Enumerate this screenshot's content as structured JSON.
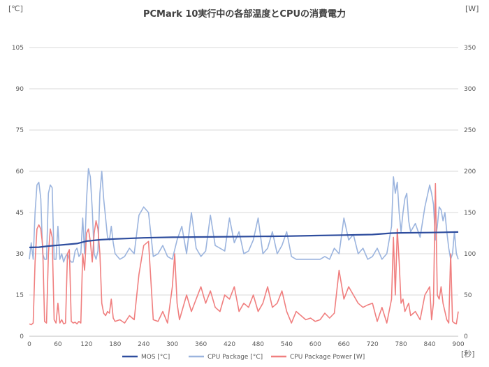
{
  "chart_data": {
    "type": "line",
    "title": "PCMark 10実行中の各部温度とCPUの消費電力",
    "left_unit": "[℃]",
    "right_unit": "[W]",
    "x_unit": "[秒]",
    "xlim": [
      0,
      900
    ],
    "ylim_left": [
      0,
      105
    ],
    "ylim_right": [
      0,
      350
    ],
    "x_ticks": [
      "0",
      "60",
      "120",
      "180",
      "240",
      "300",
      "360",
      "420",
      "480",
      "540",
      "600",
      "660",
      "720",
      "780",
      "840",
      "900"
    ],
    "y_left_ticks": [
      "0",
      "15",
      "30",
      "45",
      "60",
      "75",
      "90",
      "105"
    ],
    "y_right_ticks": [
      "0",
      "50",
      "100",
      "150",
      "200",
      "250",
      "300",
      "350"
    ],
    "grid": "horizontal",
    "legend_position": "bottom",
    "series": [
      {
        "name": "MOS [°C]",
        "axis": "left",
        "color": "#2e4d9e",
        "x": [
          0,
          20,
          40,
          60,
          80,
          100,
          120,
          150,
          180,
          240,
          300,
          360,
          420,
          480,
          540,
          600,
          660,
          720,
          760,
          780,
          840,
          900
        ],
        "y": [
          32.3,
          32.4,
          32.8,
          33.1,
          33.4,
          33.7,
          34.6,
          35.1,
          35.4,
          35.8,
          36.0,
          36.1,
          36.2,
          36.3,
          36.4,
          36.6,
          36.8,
          37.0,
          37.5,
          37.6,
          37.7,
          37.9
        ]
      },
      {
        "name": "CPU Package [°C]",
        "axis": "left",
        "color": "#9bb4de",
        "x": [
          0,
          4,
          8,
          12,
          16,
          20,
          24,
          28,
          32,
          36,
          40,
          44,
          48,
          52,
          56,
          60,
          64,
          68,
          72,
          76,
          80,
          84,
          88,
          92,
          96,
          100,
          104,
          108,
          112,
          116,
          120,
          124,
          128,
          132,
          136,
          140,
          144,
          148,
          152,
          156,
          160,
          164,
          168,
          172,
          176,
          180,
          190,
          200,
          210,
          220,
          230,
          240,
          250,
          260,
          270,
          280,
          290,
          300,
          310,
          320,
          330,
          340,
          350,
          360,
          370,
          380,
          390,
          400,
          410,
          420,
          430,
          440,
          450,
          460,
          470,
          480,
          490,
          500,
          510,
          520,
          530,
          540,
          550,
          560,
          570,
          580,
          590,
          600,
          610,
          620,
          630,
          640,
          650,
          660,
          670,
          680,
          690,
          700,
          710,
          720,
          730,
          740,
          750,
          760,
          764,
          768,
          772,
          776,
          780,
          784,
          788,
          792,
          796,
          800,
          810,
          820,
          830,
          840,
          844,
          848,
          852,
          856,
          860,
          864,
          868,
          872,
          876,
          880,
          884,
          888,
          892,
          896,
          900
        ],
        "y": [
          28,
          34,
          28,
          45,
          55,
          56,
          50,
          30,
          28,
          28,
          52,
          55,
          54,
          28,
          28,
          40,
          28,
          30,
          27,
          29,
          30,
          28,
          27,
          27,
          31,
          32,
          29,
          30,
          43,
          30,
          50,
          61,
          58,
          46,
          30,
          28,
          31,
          52,
          60,
          50,
          43,
          36,
          35,
          40,
          34,
          30,
          28,
          29,
          32,
          30,
          44,
          47,
          45,
          29,
          30,
          33,
          29,
          28,
          35,
          40,
          30,
          45,
          32,
          29,
          31,
          44,
          33,
          32,
          31,
          43,
          34,
          38,
          30,
          31,
          35,
          43,
          30,
          32,
          38,
          30,
          33,
          38,
          29,
          28,
          28,
          28,
          28,
          28,
          28,
          29,
          28,
          32,
          30,
          43,
          35,
          37,
          30,
          32,
          28,
          29,
          32,
          28,
          30,
          40,
          58,
          52,
          56,
          45,
          38,
          45,
          50,
          52,
          42,
          38,
          41,
          36,
          47,
          55,
          52,
          48,
          35,
          40,
          47,
          46,
          42,
          45,
          38,
          32,
          28,
          30,
          38,
          30,
          28
        ]
      },
      {
        "name": "CPU Package Power [W]",
        "axis": "right",
        "color": "#f07f7f",
        "x": [
          0,
          4,
          8,
          12,
          16,
          20,
          24,
          28,
          32,
          36,
          40,
          44,
          48,
          52,
          56,
          60,
          64,
          68,
          72,
          76,
          80,
          84,
          88,
          92,
          96,
          100,
          104,
          108,
          112,
          116,
          120,
          124,
          128,
          132,
          136,
          140,
          144,
          148,
          152,
          156,
          160,
          164,
          168,
          172,
          176,
          180,
          190,
          200,
          210,
          220,
          230,
          240,
          250,
          260,
          270,
          280,
          290,
          300,
          305,
          310,
          315,
          320,
          330,
          340,
          350,
          360,
          370,
          380,
          390,
          400,
          410,
          420,
          430,
          440,
          450,
          460,
          470,
          480,
          490,
          500,
          510,
          520,
          530,
          540,
          550,
          560,
          570,
          580,
          590,
          600,
          610,
          620,
          630,
          640,
          650,
          660,
          670,
          680,
          690,
          700,
          710,
          720,
          730,
          740,
          750,
          760,
          764,
          768,
          772,
          776,
          780,
          784,
          788,
          792,
          796,
          800,
          810,
          820,
          830,
          840,
          844,
          848,
          852,
          856,
          860,
          864,
          868,
          872,
          876,
          880,
          884,
          888,
          892,
          896,
          900
        ],
        "y": [
          15,
          14,
          16,
          90,
          130,
          135,
          130,
          110,
          18,
          16,
          100,
          130,
          120,
          20,
          16,
          40,
          16,
          20,
          15,
          16,
          100,
          105,
          18,
          16,
          17,
          15,
          18,
          16,
          100,
          80,
          125,
          130,
          115,
          90,
          125,
          140,
          130,
          100,
          40,
          28,
          25,
          30,
          28,
          45,
          22,
          18,
          20,
          16,
          25,
          20,
          75,
          110,
          115,
          20,
          18,
          30,
          16,
          60,
          100,
          40,
          20,
          30,
          50,
          30,
          45,
          60,
          40,
          55,
          35,
          30,
          50,
          45,
          60,
          30,
          40,
          35,
          50,
          30,
          40,
          60,
          35,
          40,
          55,
          30,
          16,
          30,
          25,
          20,
          22,
          18,
          20,
          28,
          22,
          28,
          80,
          45,
          60,
          50,
          40,
          35,
          38,
          40,
          18,
          35,
          16,
          45,
          120,
          50,
          130,
          90,
          40,
          45,
          30,
          35,
          40,
          25,
          30,
          20,
          50,
          60,
          20,
          40,
          185,
          50,
          45,
          60,
          40,
          30,
          20,
          16,
          100,
          18,
          16,
          15,
          30
        ]
      }
    ]
  }
}
